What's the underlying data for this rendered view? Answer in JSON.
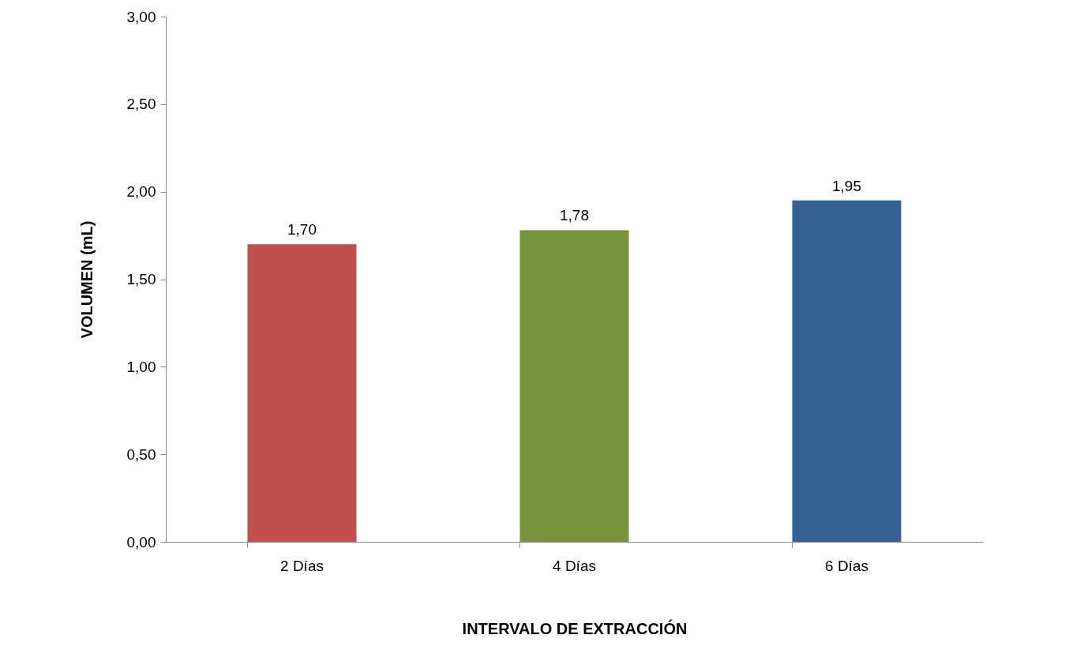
{
  "chart_data": {
    "type": "bar",
    "xlabel": "INTERVALO DE EXTRACCIÓN",
    "ylabel": "VOLUMEN (mL)",
    "categories": [
      "2 Días",
      "4 Días",
      "6 Días"
    ],
    "values": [
      1.7,
      1.78,
      1.95
    ],
    "colors": [
      "#c0504d",
      "#77933c",
      "#376092"
    ],
    "value_labels": [
      "1,70",
      "1,78",
      "1,95"
    ],
    "ylim": [
      0,
      3
    ],
    "yticks": [
      {
        "value": 0,
        "label": "0,00"
      },
      {
        "value": 0.5,
        "label": "0,50"
      },
      {
        "value": 1,
        "label": "1,00"
      },
      {
        "value": 1.5,
        "label": "1,50"
      },
      {
        "value": 2,
        "label": "2,00"
      },
      {
        "value": 2.5,
        "label": "2,50"
      },
      {
        "value": 3,
        "label": "3,00"
      }
    ],
    "grid": false,
    "legend": false
  }
}
